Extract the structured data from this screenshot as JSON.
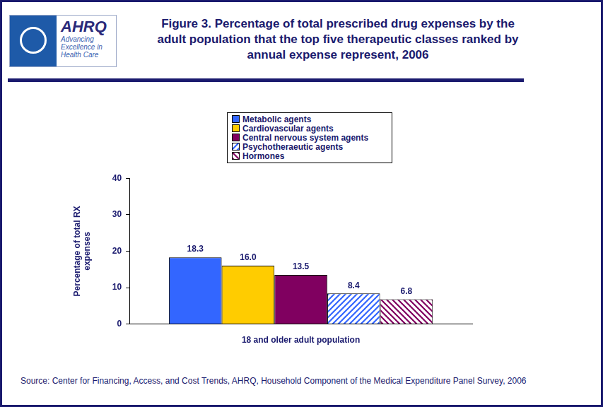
{
  "logo": {
    "name": "AHRQ",
    "tagline": "Advancing Excellence in Health Care"
  },
  "chart_data": {
    "type": "bar",
    "title": "Figure 3. Percentage of total prescribed drug expenses by the adult population that the top five therapeutic classes ranked by annual expense represent, 2006",
    "y_label": "Percentage of total RX expenses",
    "categories": [
      "18 and older adult population"
    ],
    "series": [
      {
        "name": "Metabolic agents",
        "color": "#3366ff",
        "values": [
          18.3
        ],
        "value_labels": [
          "18.3"
        ]
      },
      {
        "name": "Cardiovascular agents",
        "color": "#ffcc00",
        "values": [
          16.0
        ],
        "value_labels": [
          "16.0"
        ]
      },
      {
        "name": "Central nervous system agents",
        "color": "#800060",
        "values": [
          13.5
        ],
        "value_labels": [
          "13.5"
        ]
      },
      {
        "name": "Psychotheraeutic agents",
        "color": "#3366ff",
        "values": [
          8.4
        ],
        "value_labels": [
          "8.4"
        ]
      },
      {
        "name": "Hormones",
        "color": "#800060",
        "values": [
          6.8
        ],
        "value_labels": [
          "6.8"
        ]
      }
    ],
    "ylim": [
      0,
      40
    ],
    "yticks": [
      0,
      10,
      20,
      30,
      40
    ],
    "grid": false,
    "legend": "top",
    "data_labels": true,
    "source": "Source: Center for Financing, Access, and Cost Trends, AHRQ, Household Component of the Medical Expenditure Panel Survey, 2006"
  }
}
